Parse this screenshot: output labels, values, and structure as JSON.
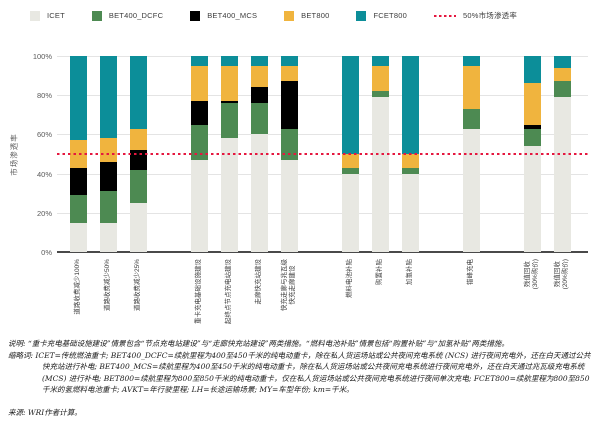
{
  "legend": {
    "items": [
      {
        "label": "ICET",
        "color": "#e8e8e2"
      },
      {
        "label": "BET400_DCFC",
        "color": "#4d8a52"
      },
      {
        "label": "BET400_MCS",
        "color": "#000000"
      },
      {
        "label": "BET800",
        "color": "#f0b43e"
      },
      {
        "label": "FCET800",
        "color": "#0c8e99"
      }
    ],
    "reference": {
      "label": "50%市场渗透率",
      "color": "#e5173f"
    }
  },
  "chart_data": {
    "type": "bar",
    "stacked": true,
    "title": "",
    "xlabel": "",
    "ylabel": "市场渗透率",
    "ylim": [
      0,
      100
    ],
    "yticks": [
      0,
      20,
      40,
      60,
      80,
      100
    ],
    "grid": true,
    "legend_position": "top",
    "reference_line": {
      "value": 50,
      "label": "50%市场渗透率",
      "color": "#e5173f"
    },
    "series_names": [
      "ICET",
      "BET400_DCFC",
      "BET400_MCS",
      "BET800",
      "FCET800"
    ],
    "series_colors": [
      "#e8e8e2",
      "#4d8a52",
      "#000000",
      "#f0b43e",
      "#0c8e99"
    ],
    "bars": [
      {
        "group": 0,
        "label": "道路收费减少100%",
        "values": [
          15,
          14,
          14,
          14,
          43
        ]
      },
      {
        "group": 0,
        "label": "道路收费减少50%",
        "values": [
          15,
          16,
          15,
          12,
          42
        ]
      },
      {
        "group": 0,
        "label": "道路收费减少25%",
        "values": [
          25,
          17,
          10,
          11,
          37
        ]
      },
      {
        "group": 1,
        "label": "重卡充电基础设施建设",
        "values": [
          47,
          18,
          12,
          18,
          5
        ]
      },
      {
        "group": 1,
        "label": "起终点节点充电站建设",
        "values": [
          58,
          18,
          1,
          18,
          5
        ]
      },
      {
        "group": 1,
        "label": "走廊快充站建设",
        "values": [
          60,
          16,
          8,
          11,
          5
        ]
      },
      {
        "group": 1,
        "label": "快充走廊与兆瓦级\n快充走廊建设",
        "values": [
          47,
          16,
          24,
          8,
          5
        ]
      },
      {
        "group": 2,
        "label": "燃料电池补贴",
        "values": [
          40,
          3,
          0,
          7,
          50
        ]
      },
      {
        "group": 2,
        "label": "购置补贴",
        "values": [
          79,
          3,
          0,
          13,
          5
        ]
      },
      {
        "group": 2,
        "label": "加氢补贴",
        "values": [
          40,
          3,
          0,
          7,
          50
        ]
      },
      {
        "group": 3,
        "label": "错峰充电",
        "values": [
          63,
          10,
          0,
          22,
          5
        ]
      },
      {
        "group": 4,
        "label": "残值回收\n(30%购价)",
        "values": [
          54,
          9,
          2,
          21,
          14
        ]
      },
      {
        "group": 4,
        "label": "残值回收\n(20%购价)",
        "values": [
          79,
          8,
          0,
          7,
          6
        ]
      }
    ]
  },
  "notes": {
    "description": "说明: “重卡充电基础设施建设”情景包含“节点充电站建设”与“走廊快充站建设”两类措施。“燃料电池补贴”情景包括“购置补贴”与“加氢补贴”两类措施。",
    "abbreviations": "缩略词: ICET=传统燃油重卡; BET400_DCFC=续航里程为400至450千米的纯电动重卡，除在私人货运场站或公共夜间充电系统 (NCS) 进行夜间充电外，还在白天通过公共快充站进行补电; BET400_MCS=续航里程为400至450千米的纯电动重卡，除在私人货运场站或公共夜间充电系统进行夜间充电外，还在白天通过兆瓦级充电系统 (MCS) 进行补电; BET800=续航里程为800至850千米的纯电动重卡，仅在私人货运场站或公共夜间充电系统进行夜间单次充电; FCET800=续航里程为800至850千米的氢燃料电池重卡; AVKT=年行驶里程; LH=长途运输场景; MY=车型年份; km=千米。",
    "source": "来源: WRI作者计算。"
  }
}
